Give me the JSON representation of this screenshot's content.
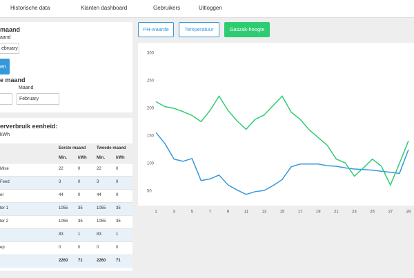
{
  "nav": [
    "Historische data",
    "Klanten dashboard",
    "Gebruikers",
    "Uitloggen"
  ],
  "first_panel": {
    "title": "maand",
    "label": "aand",
    "select": "ebruary",
    "button": "en",
    "second_title": "e maand",
    "second_label": "Maand",
    "second_select": "February"
  },
  "usage_panel": {
    "title": "erverbruik eenheid:",
    "unit": "kWh",
    "table": {
      "header": [
        "Eerste maand",
        "Tweede maand"
      ],
      "subheader": [
        "Min.",
        "kWh",
        "Min.",
        "kWh"
      ],
      "rows": [
        [
          "Mixe",
          "22",
          "0",
          "22",
          "0"
        ],
        [
          "Feed",
          "3",
          "0",
          "3",
          "0"
        ],
        [
          "er",
          "44",
          "0",
          "44",
          "0"
        ],
        [
          "ter 1",
          "1055",
          "35",
          "1055",
          "35"
        ],
        [
          "ter 2",
          "1055",
          "35",
          "1055",
          "35"
        ],
        [
          "",
          "83",
          "1",
          "83",
          "1"
        ],
        [
          "ep",
          "0",
          "0",
          "0",
          "0"
        ],
        [
          "",
          "2260",
          "71",
          "2260",
          "71"
        ]
      ]
    }
  },
  "tabs": [
    "PH-waarde",
    "Temperatuur",
    "Gaszak-hoogte"
  ],
  "chart_data": {
    "type": "line",
    "x": [
      1,
      2,
      3,
      4,
      5,
      6,
      7,
      8,
      9,
      10,
      11,
      12,
      13,
      14,
      15,
      16,
      17,
      18,
      19,
      20,
      21,
      22,
      23,
      24,
      25,
      26,
      27,
      28,
      29
    ],
    "xlim": [
      1,
      30
    ],
    "xticks": [
      1,
      3,
      5,
      7,
      9,
      11,
      13,
      15,
      17,
      19,
      21,
      23,
      25,
      27,
      29
    ],
    "ylim": [
      25,
      300
    ],
    "yticks": [
      50,
      100,
      150,
      200,
      250,
      300
    ],
    "series": [
      {
        "color": "#3498db",
        "values": [
          156,
          136,
          108,
          104,
          109,
          69,
          72,
          79,
          61,
          52,
          44,
          49,
          51,
          60,
          71,
          94,
          99,
          99,
          99,
          96,
          95,
          92,
          90,
          89,
          88,
          86,
          84,
          82,
          125
        ]
      },
      {
        "color": "#2ecc71",
        "values": [
          212,
          203,
          200,
          194,
          187,
          176,
          196,
          222,
          196,
          177,
          162,
          180,
          188,
          205,
          222,
          193,
          180,
          161,
          147,
          133,
          108,
          101,
          77,
          92,
          108,
          95,
          61,
          100,
          141
        ]
      }
    ]
  }
}
